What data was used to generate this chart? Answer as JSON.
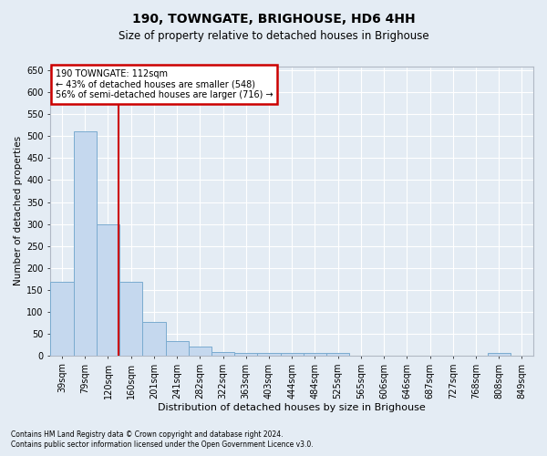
{
  "title": "190, TOWNGATE, BRIGHOUSE, HD6 4HH",
  "subtitle": "Size of property relative to detached houses in Brighouse",
  "xlabel": "Distribution of detached houses by size in Brighouse",
  "ylabel": "Number of detached properties",
  "footnote1": "Contains HM Land Registry data © Crown copyright and database right 2024.",
  "footnote2": "Contains public sector information licensed under the Open Government Licence v3.0.",
  "categories": [
    "39sqm",
    "79sqm",
    "120sqm",
    "160sqm",
    "201sqm",
    "241sqm",
    "282sqm",
    "322sqm",
    "363sqm",
    "403sqm",
    "444sqm",
    "484sqm",
    "525sqm",
    "565sqm",
    "606sqm",
    "646sqm",
    "687sqm",
    "727sqm",
    "768sqm",
    "808sqm",
    "849sqm"
  ],
  "values": [
    168,
    511,
    300,
    168,
    76,
    33,
    21,
    7,
    5,
    5,
    5,
    5,
    5,
    0,
    0,
    0,
    0,
    0,
    0,
    5,
    0
  ],
  "bar_color": "#c5d8ee",
  "bar_edge_color": "#7aabcf",
  "property_line_x": 2.45,
  "property_line_color": "#cc0000",
  "annotation_title": "190 TOWNGATE: 112sqm",
  "annotation_line1": "← 43% of detached houses are smaller (548)",
  "annotation_line2": "56% of semi-detached houses are larger (716) →",
  "annotation_box_edgecolor": "#cc0000",
  "ylim": [
    0,
    660
  ],
  "yticks": [
    0,
    50,
    100,
    150,
    200,
    250,
    300,
    350,
    400,
    450,
    500,
    550,
    600,
    650
  ],
  "bg_color": "#e4ecf4",
  "grid_color": "#ffffff",
  "title_fontsize": 10,
  "subtitle_fontsize": 8.5,
  "ylabel_fontsize": 7.5,
  "xlabel_fontsize": 8,
  "tick_fontsize": 7,
  "annot_fontsize": 7,
  "footnote_fontsize": 5.5
}
